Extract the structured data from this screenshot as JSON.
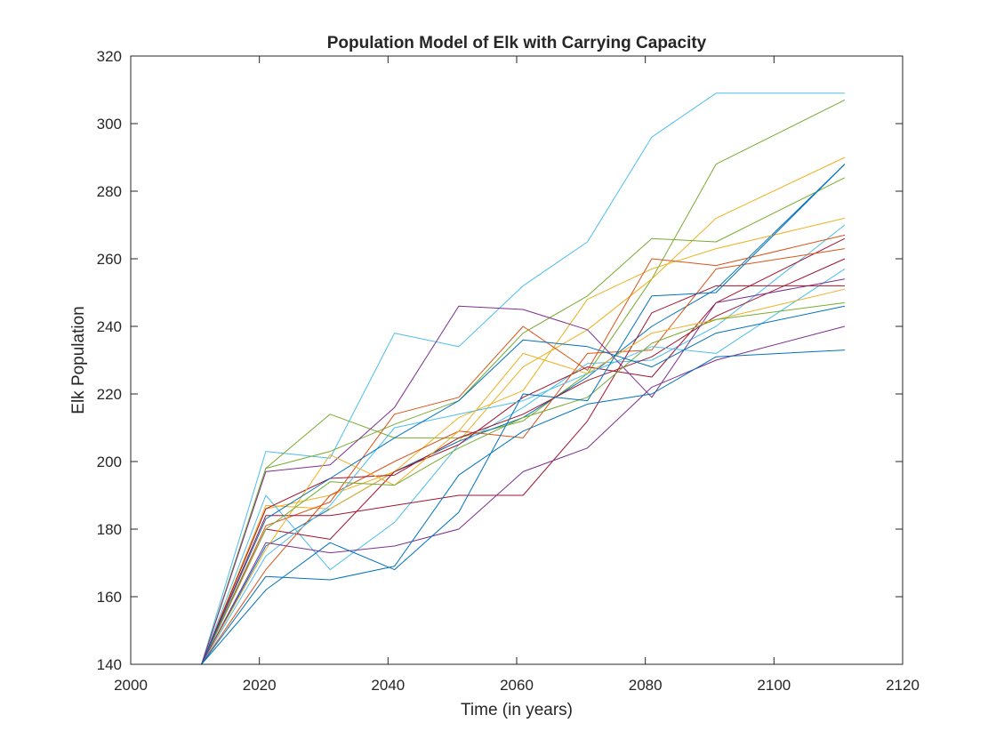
{
  "chart_data": {
    "type": "line",
    "title": "Population Model of Elk with Carrying Capacity",
    "xlabel": "Time (in years)",
    "ylabel": "Elk Population",
    "xlim": [
      2000,
      2120
    ],
    "ylim": [
      140,
      320
    ],
    "xticks": [
      2000,
      2020,
      2040,
      2060,
      2080,
      2100,
      2120
    ],
    "yticks": [
      140,
      160,
      180,
      200,
      220,
      240,
      260,
      280,
      300,
      320
    ],
    "grid": false,
    "legend": "none",
    "x": [
      2011,
      2021,
      2031,
      2041,
      2051,
      2061,
      2071,
      2081,
      2091,
      2111
    ],
    "series": [
      {
        "color": "#4DBEEE",
        "values": [
          140,
          203,
          201,
          238,
          234,
          252,
          265,
          296,
          309,
          309
        ]
      },
      {
        "color": "#77AC30",
        "values": [
          140,
          198,
          214,
          207,
          207,
          212,
          226,
          254,
          288,
          307
        ]
      },
      {
        "color": "#EDB120",
        "values": [
          140,
          186,
          190,
          197,
          206,
          228,
          239,
          254,
          272,
          290
        ]
      },
      {
        "color": "#0072BD",
        "values": [
          140,
          175,
          186,
          197,
          206,
          213,
          225,
          240,
          251,
          288
        ]
      },
      {
        "color": "#77AC30",
        "values": [
          140,
          198,
          203,
          211,
          218,
          238,
          249,
          266,
          265,
          284
        ]
      },
      {
        "color": "#EDB120",
        "values": [
          140,
          187,
          186,
          197,
          213,
          221,
          248,
          257,
          263,
          272
        ]
      },
      {
        "color": "#4DBEEE",
        "values": [
          140,
          190,
          168,
          182,
          205,
          216,
          229,
          230,
          240,
          270
        ]
      },
      {
        "color": "#D95319",
        "values": [
          140,
          181,
          188,
          214,
          219,
          240,
          227,
          260,
          258,
          267
        ]
      },
      {
        "color": "#A2142F",
        "values": [
          140,
          180,
          177,
          197,
          205,
          219,
          228,
          225,
          247,
          266
        ]
      },
      {
        "color": "#D95319",
        "values": [
          140,
          168,
          190,
          200,
          209,
          207,
          232,
          233,
          257,
          263
        ]
      },
      {
        "color": "#A2142F",
        "values": [
          140,
          186,
          195,
          196,
          207,
          214,
          224,
          231,
          243,
          260
        ]
      },
      {
        "color": "#4DBEEE",
        "values": [
          140,
          172,
          187,
          210,
          214,
          218,
          226,
          234,
          232,
          257
        ]
      },
      {
        "color": "#7E2F8E",
        "values": [
          140,
          197,
          199,
          216,
          246,
          245,
          239,
          219,
          247,
          254
        ]
      },
      {
        "color": "#A2142F",
        "values": [
          140,
          184,
          184,
          187,
          190,
          190,
          212,
          244,
          252,
          252
        ]
      },
      {
        "color": "#EDB120",
        "values": [
          140,
          174,
          202,
          193,
          209,
          232,
          226,
          238,
          242,
          251
        ]
      },
      {
        "color": "#77AC30",
        "values": [
          140,
          180,
          194,
          193,
          204,
          213,
          219,
          235,
          242,
          247
        ]
      },
      {
        "color": "#0072BD",
        "values": [
          140,
          183,
          195,
          207,
          218,
          236,
          234,
          228,
          238,
          246
        ]
      },
      {
        "color": "#7E2F8E",
        "values": [
          140,
          176,
          173,
          175,
          180,
          197,
          204,
          222,
          230,
          240
        ]
      },
      {
        "color": "#0072BD",
        "values": [
          140,
          166,
          165,
          169,
          196,
          209,
          217,
          220,
          231,
          233
        ]
      },
      {
        "color": "#0072BD",
        "values": [
          140,
          162,
          176,
          168,
          185,
          220,
          218,
          249,
          250,
          288
        ]
      }
    ]
  }
}
